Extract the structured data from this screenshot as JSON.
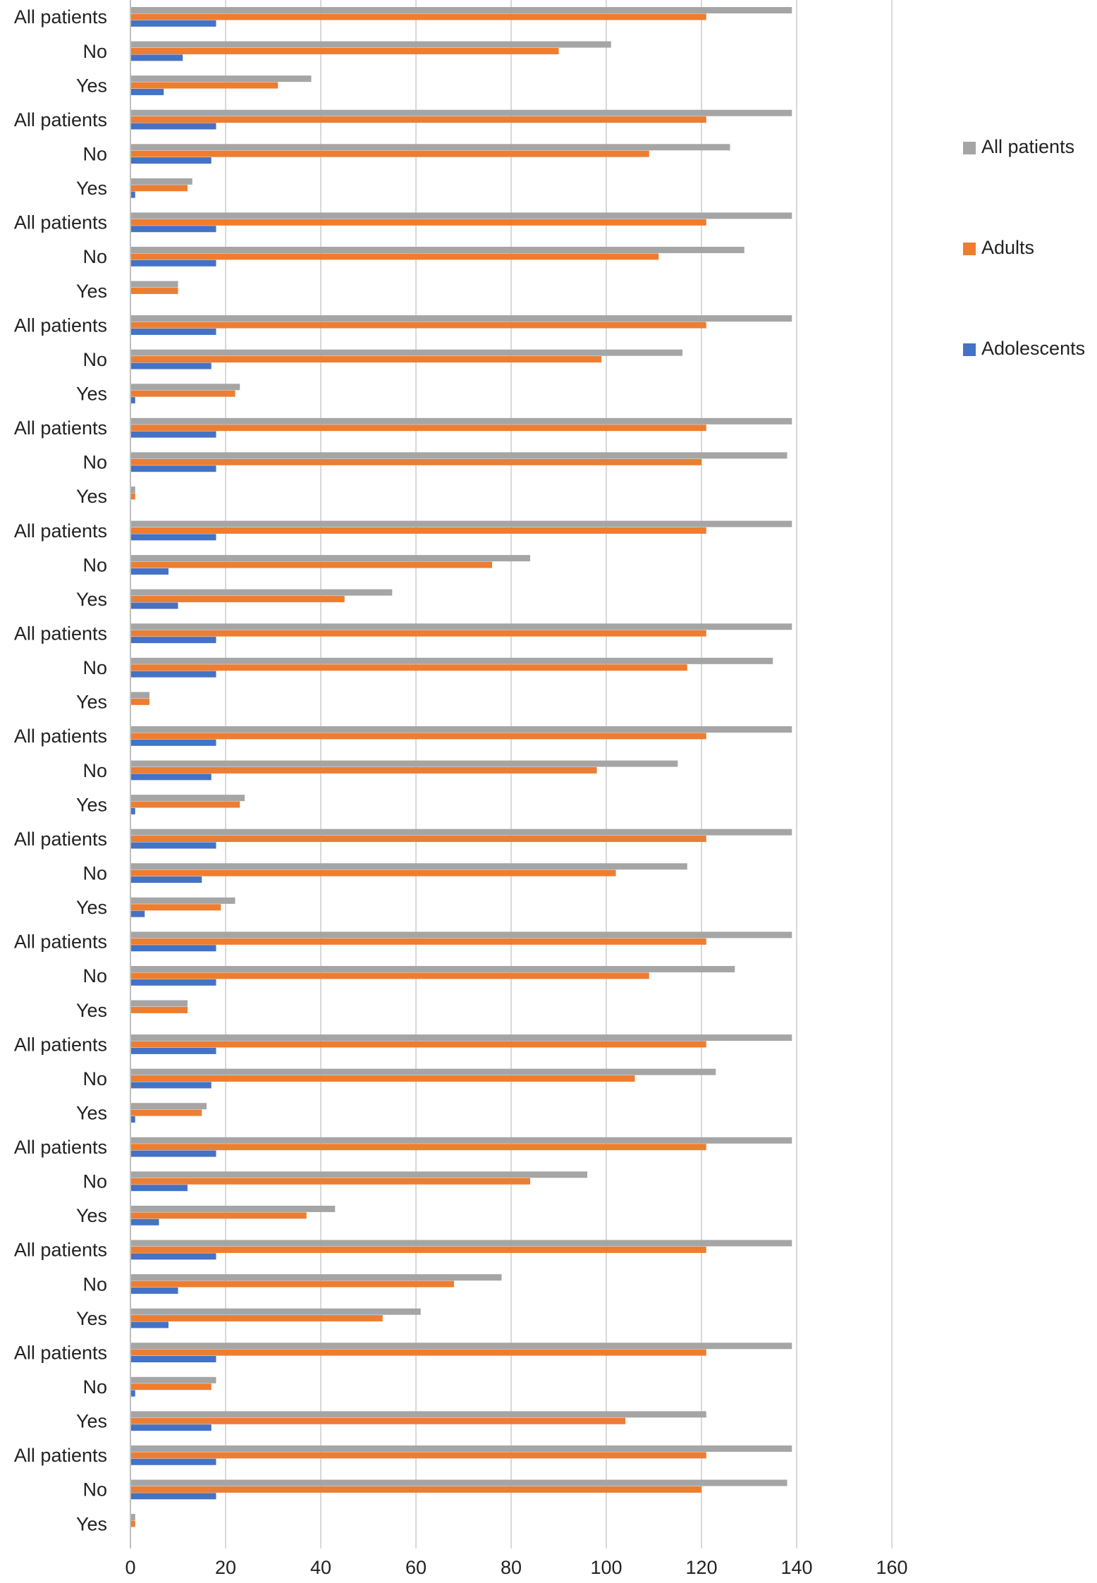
{
  "chart_data": {
    "type": "bar",
    "orientation": "horizontal",
    "title": "",
    "xlabel": "",
    "ylabel": "",
    "xlim": [
      0,
      160
    ],
    "x_ticks": [
      "0",
      "20",
      "40",
      "60",
      "80",
      "100",
      "120",
      "140",
      "160"
    ],
    "grid": "vertical",
    "legend_position": "right",
    "categories": [
      "All patients",
      "No",
      "Yes",
      "All patients",
      "No",
      "Yes",
      "All patients",
      "No",
      "Yes",
      "All patients",
      "No",
      "Yes",
      "All patients",
      "No",
      "Yes",
      "All patients",
      "No",
      "Yes",
      "All patients",
      "No",
      "Yes",
      "All patients",
      "No",
      "Yes",
      "All patients",
      "No",
      "Yes",
      "All patients",
      "No",
      "Yes",
      "All patients",
      "No",
      "Yes",
      "All patients",
      "No",
      "Yes",
      "All patients",
      "No",
      "Yes",
      "All patients",
      "No",
      "Yes",
      "All patients",
      "No",
      "Yes"
    ],
    "series": [
      {
        "name": "All patients",
        "color": "#a5a5a5",
        "values": [
          139,
          101,
          38,
          139,
          126,
          13,
          139,
          129,
          10,
          139,
          116,
          23,
          139,
          138,
          1,
          139,
          84,
          55,
          139,
          135,
          4,
          139,
          115,
          24,
          139,
          117,
          22,
          139,
          127,
          12,
          139,
          123,
          16,
          139,
          96,
          43,
          139,
          78,
          61,
          139,
          18,
          121,
          139,
          138,
          1
        ]
      },
      {
        "name": "Adults",
        "color": "#ed7d31",
        "values": [
          121,
          90,
          31,
          121,
          109,
          12,
          121,
          111,
          10,
          121,
          99,
          22,
          121,
          120,
          1,
          121,
          76,
          45,
          121,
          117,
          4,
          121,
          98,
          23,
          121,
          102,
          19,
          121,
          109,
          12,
          121,
          106,
          15,
          121,
          84,
          37,
          121,
          68,
          53,
          121,
          17,
          104,
          121,
          120,
          1
        ]
      },
      {
        "name": "Adolescents",
        "color": "#4472c4",
        "values": [
          18,
          11,
          7,
          18,
          17,
          1,
          18,
          18,
          0,
          18,
          17,
          1,
          18,
          18,
          0,
          18,
          8,
          10,
          18,
          18,
          0,
          18,
          17,
          1,
          18,
          15,
          3,
          18,
          18,
          0,
          18,
          17,
          1,
          18,
          12,
          6,
          18,
          10,
          8,
          18,
          1,
          17,
          18,
          18,
          0
        ]
      }
    ]
  }
}
